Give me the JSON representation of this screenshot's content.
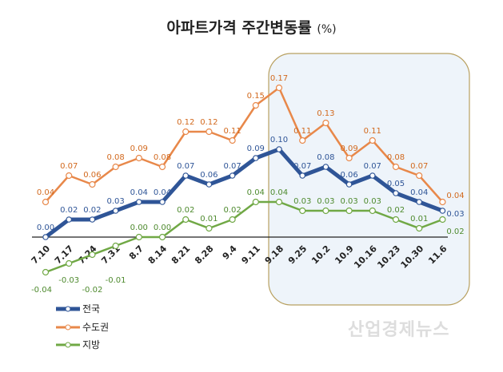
{
  "title": "아파트가격 주간변동률",
  "unit": "(%)",
  "watermark": "산업경제뉴스",
  "chart_data": {
    "type": "line",
    "title": "아파트가격 주간변동률 (%)",
    "categories": [
      "7.10",
      "7.17",
      "7.24",
      "7.31",
      "8.7",
      "8.14",
      "8.21",
      "8.28",
      "9.4",
      "9.11",
      "9.18",
      "9.25",
      "10.2",
      "10.9",
      "10.16",
      "10.23",
      "10.30",
      "11.6"
    ],
    "series": [
      {
        "name": "전국",
        "color": "#2f5597",
        "values": [
          0.0,
          0.02,
          0.02,
          0.03,
          0.04,
          0.04,
          0.07,
          0.06,
          0.07,
          0.09,
          0.1,
          0.07,
          0.08,
          0.06,
          0.07,
          0.05,
          0.04,
          0.03
        ]
      },
      {
        "name": "수도권",
        "color": "#e8884a",
        "values": [
          0.04,
          0.07,
          0.06,
          0.08,
          0.09,
          0.08,
          0.12,
          0.12,
          0.11,
          0.15,
          0.17,
          0.11,
          0.13,
          0.09,
          0.11,
          0.08,
          0.07,
          0.04
        ]
      },
      {
        "name": "지방",
        "color": "#70a845",
        "values": [
          -0.04,
          -0.03,
          -0.02,
          -0.01,
          0.0,
          0.0,
          0.02,
          0.01,
          0.02,
          0.04,
          0.04,
          0.03,
          0.03,
          0.03,
          0.03,
          0.02,
          0.01,
          0.02
        ]
      }
    ],
    "highlight_range": [
      "9.18",
      "11.6"
    ],
    "highlight_color": "#eef4fa",
    "label_colors": {
      "전국": "#2f5597",
      "수도권": "#d2691e",
      "지방": "#4e8a2e"
    },
    "legend": "bottom-left",
    "grid": false
  }
}
